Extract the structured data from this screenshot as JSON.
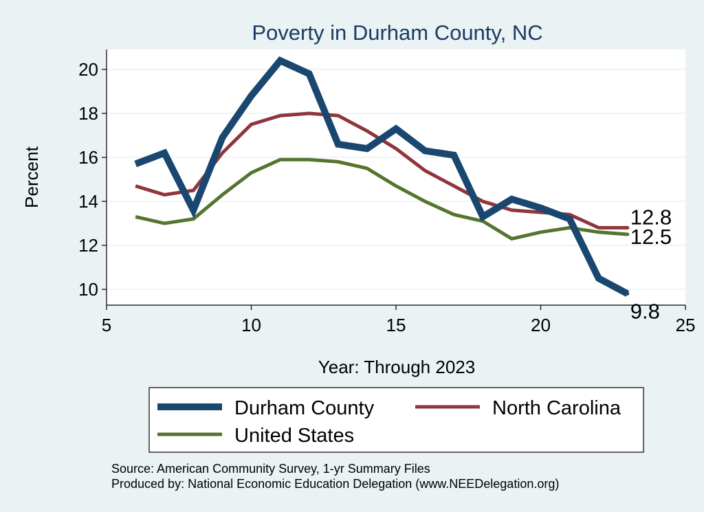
{
  "chart_data": {
    "type": "line",
    "title": "Poverty in Durham County, NC",
    "xlabel": "Year: Through 2023",
    "ylabel": "Percent",
    "xlim": [
      5,
      25
    ],
    "ylim": [
      9.5,
      20.9
    ],
    "x_ticks": [
      5,
      10,
      15,
      20,
      25
    ],
    "y_ticks": [
      10,
      12,
      14,
      16,
      18,
      20
    ],
    "grid": true,
    "x": [
      6,
      7,
      8,
      9,
      10,
      11,
      12,
      13,
      14,
      15,
      16,
      17,
      18,
      19,
      20,
      21,
      22,
      23
    ],
    "series": [
      {
        "name": "Durham County",
        "color": "#1a476f",
        "width": "thick",
        "values": [
          15.7,
          16.2,
          13.6,
          16.9,
          18.8,
          20.4,
          19.8,
          16.6,
          16.4,
          17.3,
          16.3,
          16.1,
          13.3,
          14.1,
          13.7,
          13.2,
          10.5,
          9.8
        ],
        "end_label": "9.8"
      },
      {
        "name": "North Carolina",
        "color": "#90353b",
        "width": "medium",
        "values": [
          14.7,
          14.3,
          14.5,
          16.2,
          17.5,
          17.9,
          18.0,
          17.9,
          17.2,
          16.4,
          15.4,
          14.7,
          14.0,
          13.6,
          13.5,
          13.4,
          12.8,
          12.8
        ],
        "end_label": "12.8"
      },
      {
        "name": "United States",
        "color": "#55752f",
        "width": "medium",
        "values": [
          13.3,
          13.0,
          13.2,
          14.3,
          15.3,
          15.9,
          15.9,
          15.8,
          15.5,
          14.7,
          14.0,
          13.4,
          13.1,
          12.3,
          12.6,
          12.8,
          12.6,
          12.5
        ],
        "end_label": "12.5"
      }
    ]
  },
  "footer": {
    "source": "Source: American Community Survey, 1-yr Summary Files",
    "produced_by": "Produced by: National Economic Education Delegation (www.NEEDelegation.org)"
  }
}
